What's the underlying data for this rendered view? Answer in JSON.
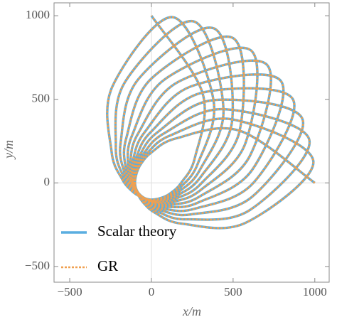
{
  "chart_data": {
    "type": "line",
    "xlabel": "x/m",
    "ylabel": "y/m",
    "xlim": [
      -596,
      1088
    ],
    "ylim": [
      -594,
      1077
    ],
    "xticks": [
      {
        "value": -500,
        "label": "−500"
      },
      0,
      500,
      1000
    ],
    "yticks": [
      {
        "value": -500,
        "label": "−500"
      },
      0,
      500,
      1000
    ],
    "origin_lines": true,
    "legend": "lower left",
    "x": [
      1000,
      540,
      154,
      0,
      -65,
      -92,
      -100,
      -84,
      -49,
      24,
      188,
      576,
      991,
      495,
      118,
      -24,
      -79,
      -98,
      -98,
      -75,
      -33,
      47,
      218,
      603,
      966,
      441,
      80,
      -47,
      -91,
      -102,
      -95,
      -65,
      -17,
      70,
      244,
      619,
      924,
      380,
      40,
      -70,
      -102,
      -105,
      -90,
      -53,
      0,
      91,
      267,
      624,
      866,
      312,
      0,
      -91,
      -112,
      -106,
      -83,
      -41,
      17,
      111,
      285,
      619,
      793,
      239,
      -40,
      -111,
      -119,
      -105,
      -75,
      -27,
      33,
      129,
      298,
      603,
      707,
      162,
      -80,
      -129,
      -125,
      -102,
      -66,
      -14,
      49,
      144,
      305,
      576,
      609,
      81,
      -118,
      -144,
      -128,
      -98,
      -56,
      0,
      65,
      158,
      308,
      540,
      500,
      0,
      -154,
      -158,
      -129,
      -92,
      -44,
      14,
      79,
      168,
      305,
      495,
      383,
      -81,
      -188,
      -168,
      -128,
      -84,
      -32,
      27,
      91,
      176,
      298,
      441,
      259,
      -162,
      -218,
      -176,
      -125,
      -75,
      -20,
      41,
      102,
      180,
      285,
      380,
      131,
      -239,
      -244,
      -180,
      -119,
      -65,
      -7,
      53,
      112,
      182,
      267,
      312,
      0
    ],
    "series": [
      {
        "name": "Scalar theory",
        "color": "#5aaee0",
        "dashed": false,
        "values": [
          0,
          312,
          267,
          182,
          112,
          53,
          -7,
          -65,
          -119,
          -180,
          -244,
          -239,
          131,
          380,
          285,
          180,
          102,
          41,
          -20,
          -75,
          -125,
          -176,
          -218,
          -162,
          259,
          441,
          298,
          176,
          91,
          27,
          -32,
          -84,
          -128,
          -168,
          -188,
          -81,
          383,
          495,
          305,
          168,
          79,
          14,
          -44,
          -92,
          -129,
          -158,
          -154,
          0,
          500,
          540,
          308,
          158,
          65,
          0,
          -56,
          -98,
          -128,
          -144,
          -118,
          81,
          609,
          576,
          305,
          144,
          49,
          -14,
          -66,
          -102,
          -125,
          -129,
          -80,
          162,
          707,
          603,
          298,
          129,
          33,
          -27,
          -75,
          -105,
          -119,
          -111,
          -40,
          239,
          793,
          619,
          285,
          111,
          17,
          -41,
          -83,
          -106,
          -112,
          -91,
          0,
          312,
          866,
          624,
          267,
          91,
          0,
          -53,
          -90,
          -105,
          -102,
          -70,
          40,
          380,
          924,
          619,
          244,
          70,
          -17,
          -65,
          -95,
          -102,
          -91,
          -47,
          80,
          441,
          966,
          603,
          218,
          47,
          -33,
          -75,
          -98,
          -98,
          -79,
          -24,
          118,
          495,
          991,
          576,
          188,
          24,
          -49,
          -84,
          -100,
          -92,
          -65,
          0,
          154,
          540,
          1000
        ]
      },
      {
        "name": "GR",
        "color": "#f0a050",
        "dashed": true,
        "values": [
          0,
          312,
          267,
          182,
          112,
          53,
          -7,
          -65,
          -119,
          -180,
          -244,
          -239,
          131,
          380,
          285,
          180,
          102,
          41,
          -20,
          -75,
          -125,
          -176,
          -218,
          -162,
          259,
          441,
          298,
          176,
          91,
          27,
          -32,
          -84,
          -128,
          -168,
          -188,
          -81,
          383,
          495,
          305,
          168,
          79,
          14,
          -44,
          -92,
          -129,
          -158,
          -154,
          0,
          500,
          540,
          308,
          158,
          65,
          0,
          -56,
          -98,
          -128,
          -144,
          -118,
          81,
          609,
          576,
          305,
          144,
          49,
          -14,
          -66,
          -102,
          -125,
          -129,
          -80,
          162,
          707,
          603,
          298,
          129,
          33,
          -27,
          -75,
          -105,
          -119,
          -111,
          -40,
          239,
          793,
          619,
          285,
          111,
          17,
          -41,
          -83,
          -106,
          -112,
          -91,
          0,
          312,
          866,
          624,
          267,
          91,
          0,
          -53,
          -90,
          -105,
          -102,
          -70,
          40,
          380,
          924,
          619,
          244,
          70,
          -17,
          -65,
          -95,
          -102,
          -91,
          -47,
          80,
          441,
          966,
          603,
          218,
          47,
          -33,
          -75,
          -98,
          -98,
          -79,
          -24,
          118,
          495,
          991,
          576,
          188,
          24,
          -49,
          -84,
          -100,
          -92,
          -65,
          0,
          154,
          540,
          1000
        ]
      }
    ]
  }
}
